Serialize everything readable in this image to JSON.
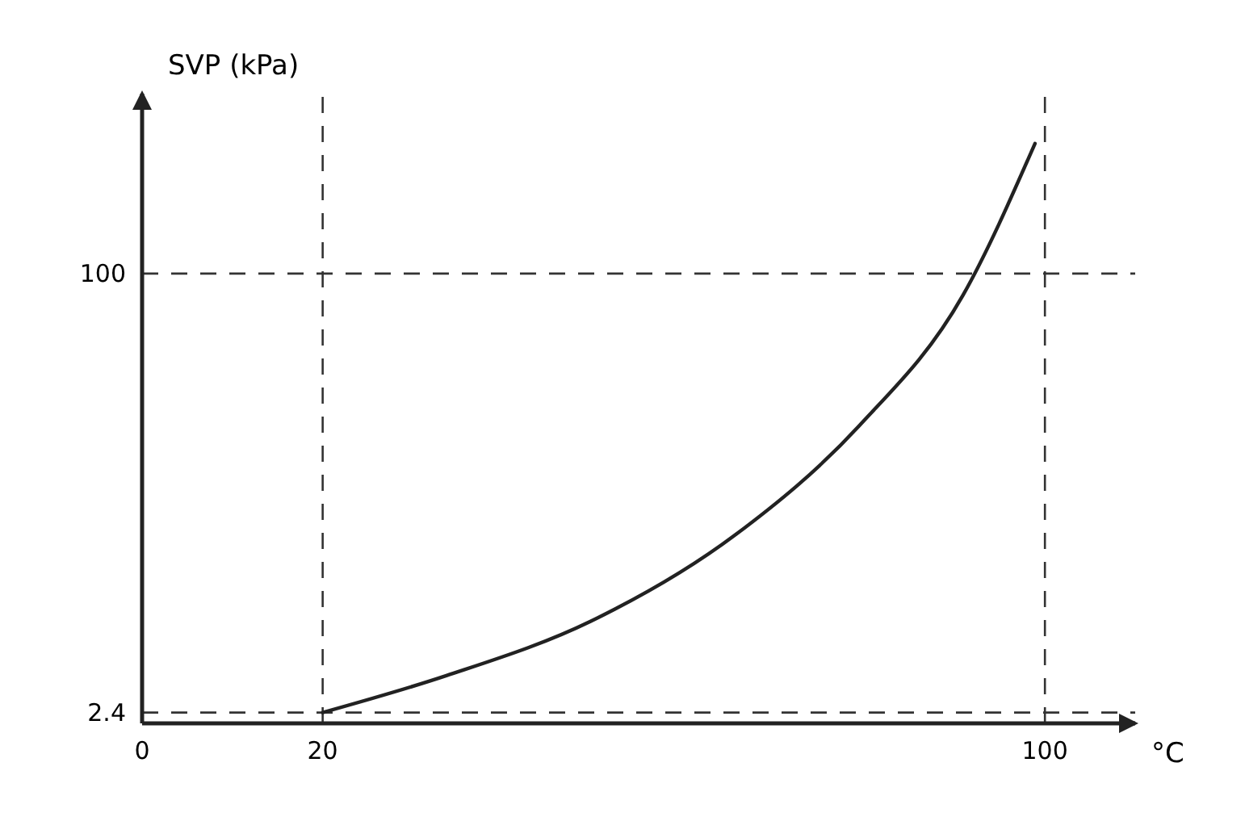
{
  "chart_data": {
    "type": "line",
    "xlabel": "°C",
    "ylabel": "SVP (kPa)",
    "x": [
      20,
      33.7,
      49.7,
      65.7,
      79.4,
      90.9,
      98.9
    ],
    "series": [
      {
        "color": "#222222",
        "values": [
          2.4,
          10.6,
          22.7,
          41.9,
          66.1,
          95.1,
          128.9
        ]
      }
    ],
    "xlim": [
      0,
      110
    ],
    "ylim": [
      0,
      140
    ],
    "xticks": [
      0,
      20,
      100
    ],
    "yticks": [
      2.4,
      100
    ],
    "ref_lines": [
      {
        "axis": "y",
        "value": 100,
        "line_style": "dashed"
      },
      {
        "axis": "y",
        "value": 2.4,
        "line_style": "dashed"
      },
      {
        "axis": "x",
        "value": 20,
        "line_style": "dashed"
      },
      {
        "axis": "x",
        "value": 100,
        "line_style": "dashed"
      }
    ],
    "grid": false,
    "marker": "none",
    "line_style": "solid"
  }
}
